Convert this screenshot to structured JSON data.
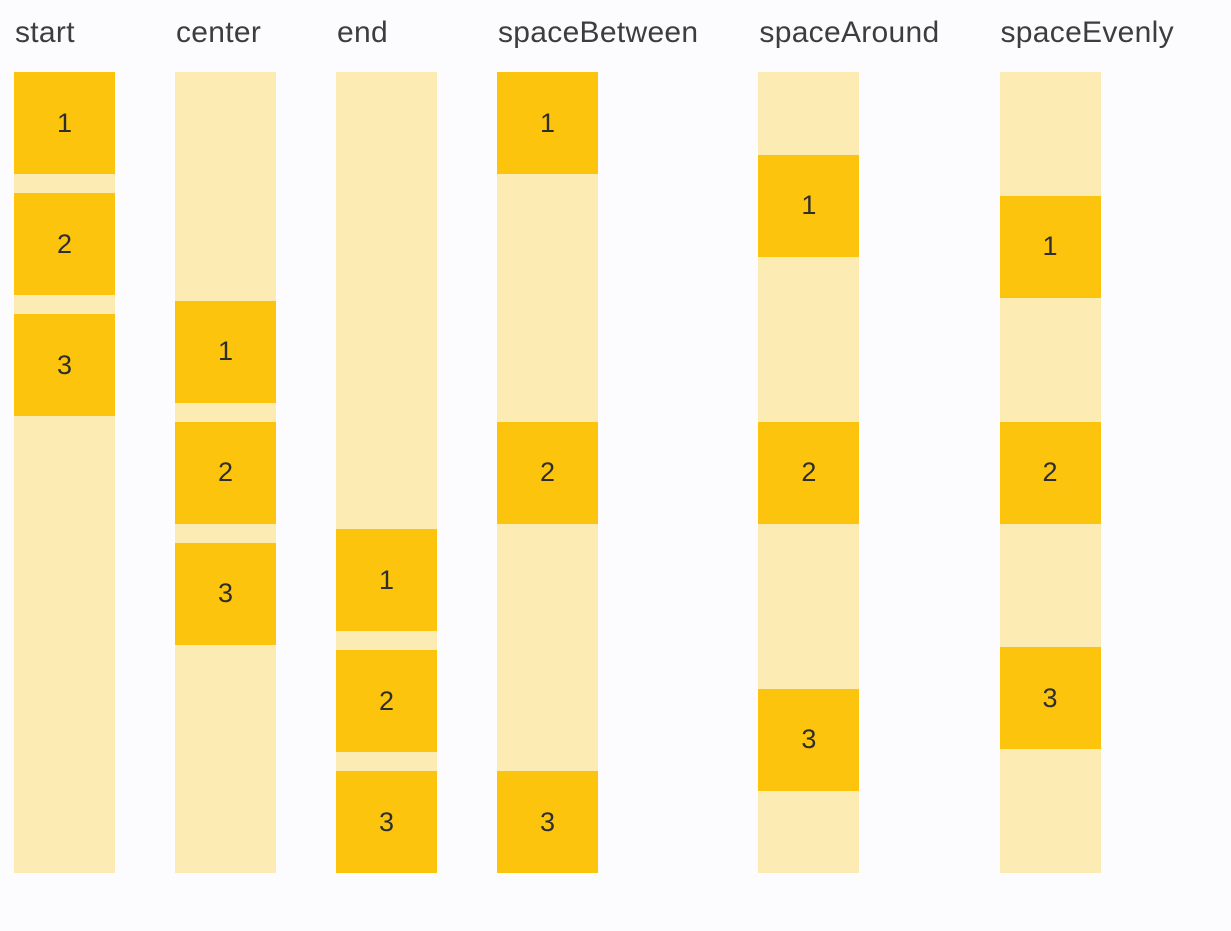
{
  "page": {
    "background_color": "#FCFCFF",
    "track_color": "#FDEBB4",
    "box_color": "#FCC40D",
    "title_text_color": "#3D3D3D",
    "box_text_color": "#2E2E2E"
  },
  "columns": [
    {
      "label": "start",
      "justify": "flex-start",
      "items": [
        "1",
        "2",
        "3"
      ]
    },
    {
      "label": "center",
      "justify": "center",
      "items": [
        "1",
        "2",
        "3"
      ]
    },
    {
      "label": "end",
      "justify": "flex-end",
      "items": [
        "1",
        "2",
        "3"
      ]
    },
    {
      "label": "spaceBetween",
      "justify": "space-between",
      "items": [
        "1",
        "2",
        "3"
      ]
    },
    {
      "label": "spaceAround",
      "justify": "space-around",
      "items": [
        "1",
        "2",
        "3"
      ]
    },
    {
      "label": "spaceEvenly",
      "justify": "space-evenly",
      "items": [
        "1",
        "2",
        "3"
      ]
    }
  ]
}
